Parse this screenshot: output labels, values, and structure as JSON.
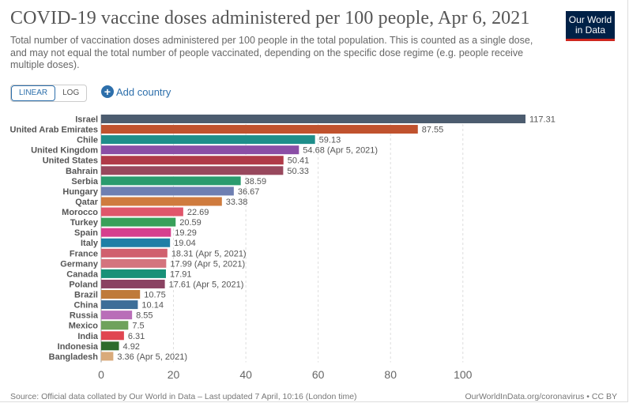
{
  "title": "COVID-19 vaccine doses administered per 100 people, Apr 6, 2021",
  "subtitle": "Total number of vaccination doses administered per 100 people in the total population. This is counted as a single dose, and may not equal the total number of people vaccinated, depending on the specific dose regime (e.g. people receive multiple doses).",
  "logo": {
    "line1": "Our World",
    "line2": "in Data"
  },
  "controls": {
    "linear_label": "LINEAR",
    "log_label": "LOG",
    "add_country_label": "Add country"
  },
  "footer": {
    "source": "Source: Official data collated by Our World in Data – Last updated 7 April, 10:16 (London time)",
    "credit": "OurWorldInData.org/coronavirus • CC BY"
  },
  "chart_data": {
    "type": "bar",
    "orientation": "horizontal",
    "title": "COVID-19 vaccine doses administered per 100 people, Apr 6, 2021",
    "xlim": [
      0,
      117.31
    ],
    "xticks": [
      0,
      20,
      40,
      60,
      80,
      100
    ],
    "grid": true,
    "categories": [
      "Israel",
      "United Arab Emirates",
      "Chile",
      "United Kingdom",
      "United States",
      "Bahrain",
      "Serbia",
      "Hungary",
      "Qatar",
      "Morocco",
      "Turkey",
      "Spain",
      "Italy",
      "France",
      "Germany",
      "Canada",
      "Poland",
      "Brazil",
      "China",
      "Russia",
      "Mexico",
      "India",
      "Indonesia",
      "Bangladesh"
    ],
    "values": [
      117.31,
      87.55,
      59.13,
      54.68,
      50.41,
      50.33,
      38.59,
      36.67,
      33.38,
      22.69,
      20.59,
      19.29,
      19.04,
      18.31,
      17.99,
      17.91,
      17.61,
      10.75,
      10.14,
      8.55,
      7.5,
      6.31,
      4.92,
      3.36
    ],
    "labels": [
      "117.31",
      "87.55",
      "59.13",
      "54.68 (Apr 5, 2021)",
      "50.41",
      "50.33",
      "38.59",
      "36.67",
      "33.38",
      "22.69",
      "20.59",
      "19.29",
      "19.04",
      "18.31 (Apr 5, 2021)",
      "17.99 (Apr 5, 2021)",
      "17.91",
      "17.61 (Apr 5, 2021)",
      "10.75",
      "10.14",
      "8.55",
      "7.5",
      "6.31",
      "4.92",
      "3.36 (Apr 5, 2021)"
    ],
    "colors": [
      "#4c5c6f",
      "#c0522e",
      "#1e8e8a",
      "#8a4ea6",
      "#b03a48",
      "#98485d",
      "#2a9b6e",
      "#6e7fb2",
      "#cf7b3e",
      "#e0566b",
      "#38a05a",
      "#d63f8e",
      "#1f7fa6",
      "#d0606e",
      "#d4747e",
      "#189178",
      "#8a4262",
      "#bf7a3a",
      "#3d6e98",
      "#b96eb8",
      "#6fa25c",
      "#e04651",
      "#2e6b2c",
      "#d9aa7a"
    ]
  }
}
